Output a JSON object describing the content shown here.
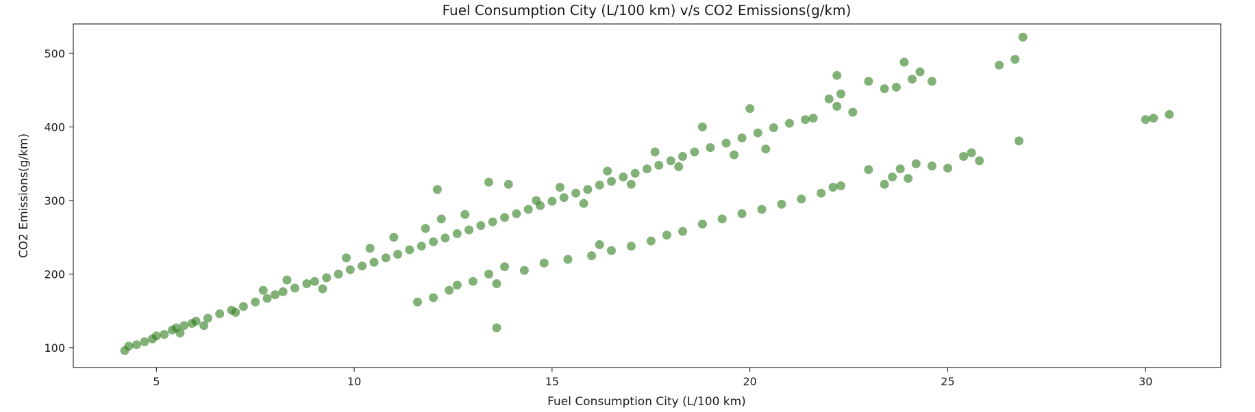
{
  "chart_data": {
    "type": "scatter",
    "title": "Fuel Consumption City (L/100 km) v/s CO2 Emissions(g/km)",
    "xlabel": "Fuel Consumption City (L/100 km)",
    "ylabel": "CO2 Emissions(g/km)",
    "xlim": [
      2.9,
      31.9
    ],
    "ylim": [
      73,
      540
    ],
    "xticks": [
      5,
      10,
      15,
      20,
      25,
      30
    ],
    "yticks": [
      100,
      200,
      300,
      400,
      500
    ],
    "grid": false,
    "marker_color": "#2e7d1e",
    "marker_alpha": 0.6,
    "series": [
      {
        "points": [
          [
            4.2,
            96
          ],
          [
            4.3,
            102
          ],
          [
            4.5,
            104
          ],
          [
            4.7,
            108
          ],
          [
            4.9,
            112
          ],
          [
            5.0,
            116
          ],
          [
            5.2,
            118
          ],
          [
            5.4,
            124
          ],
          [
            5.5,
            127
          ],
          [
            5.7,
            130
          ],
          [
            5.9,
            133
          ],
          [
            6.0,
            136
          ],
          [
            6.3,
            140
          ],
          [
            6.6,
            146
          ],
          [
            6.9,
            151
          ],
          [
            7.2,
            156
          ],
          [
            7.5,
            162
          ],
          [
            7.8,
            167
          ],
          [
            8.0,
            172
          ],
          [
            8.2,
            176
          ],
          [
            8.5,
            181
          ],
          [
            8.8,
            187
          ],
          [
            9.0,
            190
          ],
          [
            9.3,
            195
          ],
          [
            9.6,
            200
          ],
          [
            9.9,
            206
          ],
          [
            10.2,
            211
          ],
          [
            10.5,
            216
          ],
          [
            10.8,
            222
          ],
          [
            11.1,
            227
          ],
          [
            11.4,
            233
          ],
          [
            11.7,
            238
          ],
          [
            12.0,
            244
          ],
          [
            12.3,
            249
          ],
          [
            12.6,
            255
          ],
          [
            12.9,
            260
          ],
          [
            13.2,
            266
          ],
          [
            13.5,
            271
          ],
          [
            13.8,
            277
          ],
          [
            14.1,
            282
          ],
          [
            14.4,
            288
          ],
          [
            14.7,
            293
          ],
          [
            15.0,
            299
          ],
          [
            15.3,
            304
          ],
          [
            15.6,
            310
          ],
          [
            15.9,
            315
          ],
          [
            16.2,
            321
          ],
          [
            16.5,
            326
          ],
          [
            16.8,
            332
          ],
          [
            17.1,
            337
          ],
          [
            17.4,
            343
          ],
          [
            17.7,
            348
          ],
          [
            18.0,
            354
          ],
          [
            18.3,
            360
          ],
          [
            18.6,
            366
          ],
          [
            19.0,
            372
          ],
          [
            19.4,
            378
          ],
          [
            19.8,
            385
          ],
          [
            20.2,
            392
          ],
          [
            20.6,
            399
          ],
          [
            21.0,
            405
          ],
          [
            21.4,
            410
          ],
          [
            5.6,
            120
          ],
          [
            6.2,
            130
          ],
          [
            7.0,
            148
          ],
          [
            7.7,
            178
          ],
          [
            8.3,
            192
          ],
          [
            9.2,
            180
          ],
          [
            9.8,
            222
          ],
          [
            10.4,
            235
          ],
          [
            11.0,
            250
          ],
          [
            11.8,
            262
          ],
          [
            12.2,
            275
          ],
          [
            12.8,
            281
          ],
          [
            13.4,
            325
          ],
          [
            13.9,
            322
          ],
          [
            14.6,
            300
          ],
          [
            15.2,
            318
          ],
          [
            15.8,
            296
          ],
          [
            16.4,
            340
          ],
          [
            17.0,
            322
          ],
          [
            17.6,
            366
          ],
          [
            18.2,
            346
          ],
          [
            18.8,
            400
          ],
          [
            19.6,
            362
          ],
          [
            20.0,
            425
          ],
          [
            20.4,
            370
          ],
          [
            21.6,
            412
          ],
          [
            12.1,
            315
          ],
          [
            11.6,
            162
          ],
          [
            12.0,
            168
          ],
          [
            12.4,
            178
          ],
          [
            12.6,
            185
          ],
          [
            13.0,
            190
          ],
          [
            13.4,
            200
          ],
          [
            13.8,
            210
          ],
          [
            13.6,
            187
          ],
          [
            14.3,
            205
          ],
          [
            14.8,
            215
          ],
          [
            15.4,
            220
          ],
          [
            16.0,
            225
          ],
          [
            16.5,
            232
          ],
          [
            16.2,
            240
          ],
          [
            17.0,
            238
          ],
          [
            17.5,
            245
          ],
          [
            17.9,
            253
          ],
          [
            18.3,
            258
          ],
          [
            18.8,
            268
          ],
          [
            19.3,
            275
          ],
          [
            19.8,
            282
          ],
          [
            20.3,
            288
          ],
          [
            20.8,
            295
          ],
          [
            21.3,
            302
          ],
          [
            21.8,
            310
          ],
          [
            22.1,
            318
          ],
          [
            22.3,
            320
          ],
          [
            22.0,
            438
          ],
          [
            22.2,
            428
          ],
          [
            22.2,
            470
          ],
          [
            22.3,
            445
          ],
          [
            22.6,
            420
          ],
          [
            23.0,
            462
          ],
          [
            23.4,
            452
          ],
          [
            23.7,
            454
          ],
          [
            23.9,
            488
          ],
          [
            24.1,
            465
          ],
          [
            24.3,
            475
          ],
          [
            24.6,
            462
          ],
          [
            23.0,
            342
          ],
          [
            23.4,
            322
          ],
          [
            23.6,
            332
          ],
          [
            23.8,
            343
          ],
          [
            24.0,
            330
          ],
          [
            24.2,
            350
          ],
          [
            24.6,
            347
          ],
          [
            25.0,
            344
          ],
          [
            25.4,
            360
          ],
          [
            25.6,
            365
          ],
          [
            25.8,
            354
          ],
          [
            26.3,
            484
          ],
          [
            26.7,
            492
          ],
          [
            26.8,
            381
          ],
          [
            26.9,
            522
          ],
          [
            30.0,
            410
          ],
          [
            30.2,
            412
          ],
          [
            30.6,
            417
          ],
          [
            13.6,
            127
          ]
        ]
      }
    ]
  }
}
